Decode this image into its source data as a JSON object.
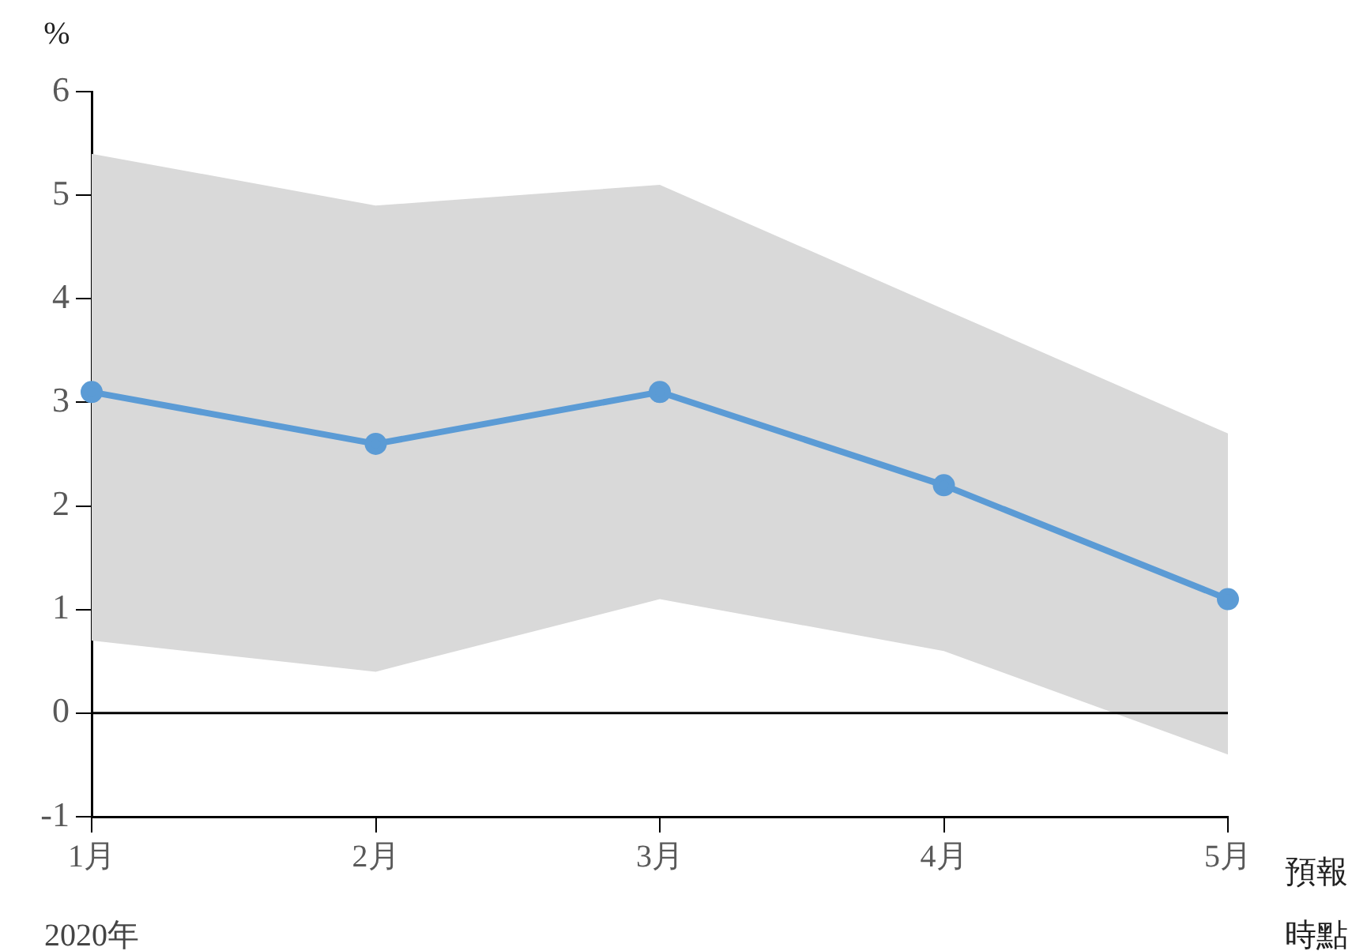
{
  "chart_data": {
    "type": "line",
    "ylabel": "%",
    "xlabel": "預報時點",
    "annotations": [
      "2020年"
    ],
    "categories": [
      "1月",
      "2月",
      "3月",
      "4月",
      "5月"
    ],
    "series": [
      {
        "color": "#5b9bd5",
        "values": [
          3.1,
          2.6,
          3.1,
          2.2,
          1.1
        ],
        "lower": [
          0.7,
          0.4,
          1.1,
          0.6,
          -0.4
        ],
        "upper": [
          5.4,
          4.9,
          5.1,
          3.9,
          2.7
        ]
      }
    ],
    "ylim": [
      -1,
      6
    ],
    "yticks": [
      -1,
      0,
      1,
      2,
      3,
      4,
      5,
      6
    ],
    "grid": false,
    "legend": false,
    "marker": "circle",
    "ref_lines": [
      {
        "axis": "y",
        "value": 0,
        "color": "#000000"
      }
    ]
  }
}
